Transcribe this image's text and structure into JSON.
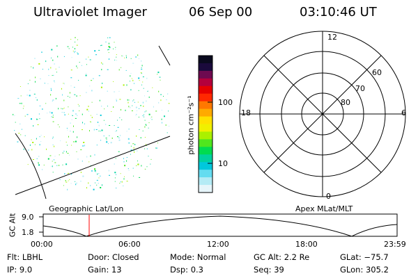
{
  "header": {
    "instrument": "Ultraviolet Imager",
    "date": "06 Sep 00",
    "time": "03:10:46 UT"
  },
  "colorbar": {
    "units": "photon cm⁻²s⁻¹",
    "tick_labels": [
      "100",
      "10"
    ],
    "colors": [
      "#0a0a1e",
      "#1a0a3c",
      "#6e0a50",
      "#b4003c",
      "#e60000",
      "#ff2800",
      "#ff7800",
      "#ffaa00",
      "#ffe100",
      "#f0f000",
      "#aaf000",
      "#50e61e",
      "#00dc50",
      "#00d2a0",
      "#00c8dc",
      "#64dcf0",
      "#b4ebf5",
      "#e6f5fa"
    ]
  },
  "polar_plot": {
    "mlt_labels": {
      "top": "12",
      "left": "18",
      "right": "6",
      "bottom": "0"
    },
    "lat_labels": [
      "60",
      "70",
      "80"
    ]
  },
  "panel_labels": {
    "left": "Geographic Lat/Lon",
    "right": "Apex MLat/MLT"
  },
  "altitude_plot": {
    "ylabel": "GC Alt",
    "y_ticks": [
      "9.0",
      "1.8"
    ],
    "x_ticks": [
      "00:00",
      "06:00",
      "12:00",
      "18:00",
      "23:59"
    ],
    "current_time_marker": "03:10",
    "line_color": "#000000",
    "marker_color": "#ff0000"
  },
  "info": {
    "row1": [
      {
        "label": "Flt:",
        "value": "LBHL"
      },
      {
        "label": "Door:",
        "value": "Closed"
      },
      {
        "label": "Mode:",
        "value": "Normal"
      },
      {
        "label": "GC Alt:",
        "value": "2.2 Re"
      },
      {
        "label": "GLat:",
        "value": "−75.7"
      }
    ],
    "row2": [
      {
        "label": "IP:",
        "value": "9.0"
      },
      {
        "label": "Gain:",
        "value": "13"
      },
      {
        "label": "Dsp:",
        "value": "0.3"
      },
      {
        "label": "Seq:",
        "value": "39"
      },
      {
        "label": "GLon:",
        "value": "305.2"
      }
    ]
  }
}
